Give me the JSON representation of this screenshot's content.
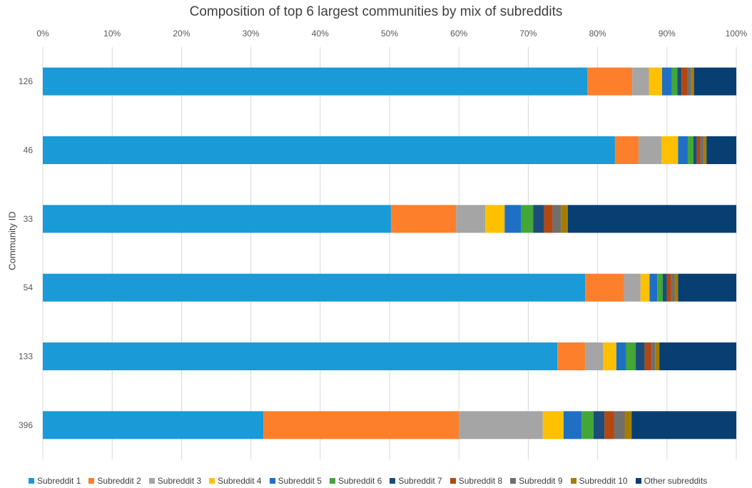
{
  "chart_data": {
    "type": "bar",
    "orientation": "horizontal",
    "stacked": "percent",
    "title": "Composition of top 6 largest communities by mix of subreddits",
    "ylabel": "Community ID",
    "xlabel": "",
    "xlim": [
      0,
      100
    ],
    "x_ticks": [
      "0%",
      "10%",
      "20%",
      "30%",
      "40%",
      "50%",
      "60%",
      "70%",
      "80%",
      "90%",
      "100%"
    ],
    "grid": true,
    "legend_position": "bottom",
    "categories": [
      "126",
      "46",
      "33",
      "54",
      "133",
      "396"
    ],
    "series": [
      {
        "name": "Subreddit 1",
        "color": "#1a9ad6",
        "values": [
          78.5,
          82.5,
          50.2,
          78.2,
          74.2,
          31.8
        ]
      },
      {
        "name": "Subreddit 2",
        "color": "#fd7f2b",
        "values": [
          6.5,
          3.4,
          9.4,
          5.6,
          4.0,
          28.2
        ]
      },
      {
        "name": "Subreddit 3",
        "color": "#a5a5a5",
        "values": [
          2.4,
          3.3,
          4.2,
          2.4,
          2.6,
          12.1
        ]
      },
      {
        "name": "Subreddit 4",
        "color": "#ffc000",
        "values": [
          1.9,
          2.4,
          2.8,
          1.3,
          1.9,
          3.0
        ]
      },
      {
        "name": "Subreddit 5",
        "color": "#1f6fc5",
        "values": [
          1.4,
          1.4,
          2.4,
          1.1,
          1.4,
          2.6
        ]
      },
      {
        "name": "Subreddit 6",
        "color": "#43a738",
        "values": [
          0.8,
          0.8,
          1.7,
          0.8,
          1.4,
          1.7
        ]
      },
      {
        "name": "Subreddit 7",
        "color": "#1c4d7a",
        "values": [
          0.6,
          0.5,
          1.6,
          0.6,
          1.3,
          1.6
        ]
      },
      {
        "name": "Subreddit 8",
        "color": "#b3470f",
        "values": [
          0.8,
          0.5,
          1.2,
          0.6,
          0.9,
          1.4
        ]
      },
      {
        "name": "Subreddit 9",
        "color": "#6f6f6f",
        "values": [
          0.6,
          0.5,
          1.2,
          0.5,
          0.6,
          1.5
        ]
      },
      {
        "name": "Subreddit 10",
        "color": "#a67c00",
        "values": [
          0.4,
          0.4,
          1.0,
          0.5,
          0.6,
          1.0
        ]
      },
      {
        "name": "Other subreddits",
        "color": "#073f73",
        "values": [
          6.1,
          4.3,
          24.3,
          8.4,
          11.1,
          15.1
        ]
      }
    ]
  }
}
